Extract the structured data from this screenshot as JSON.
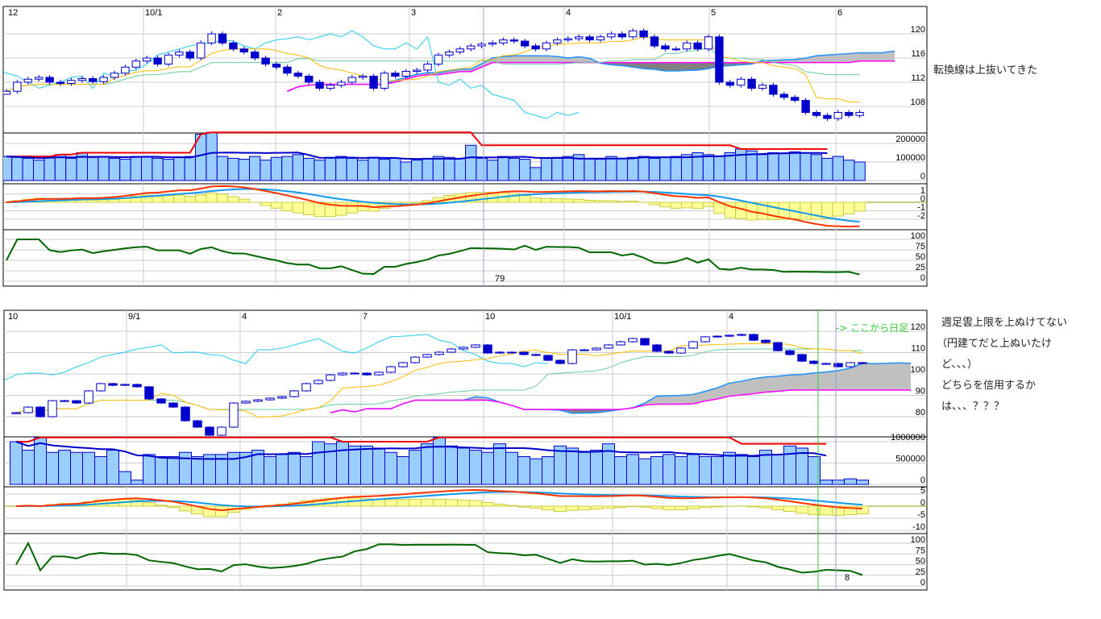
{
  "annotations": {
    "top_note": "転換線は上抜いてきた",
    "bottom_switch": "-> ここから日足",
    "bottom_note": [
      "週足雲上限を上ぬけてない",
      "（円建てだと上ぬいたけ",
      "ど、、、）",
      "どちらを信用するか",
      "は、、、？？？"
    ]
  },
  "colors": {
    "candle": "#0000cc",
    "tenkan": "#ffbb00",
    "kijun": "#66cc99",
    "chikou": "#22ccee",
    "span_a": "#1e90ff",
    "span_b": "#ff00ff",
    "cloud_light": "#c0c0c0",
    "cloud_dark": "#808080",
    "volume_fill": "#99ccff",
    "volume_ma_long": "#ee0000",
    "volume_ma_short": "#0000cc",
    "macd": "#ff3300",
    "signal": "#1199ee",
    "histogram": "#ffff99",
    "rsi": "#006600",
    "switch_line": "#33cc33",
    "cursor_line": "#9999dd"
  },
  "chart_data": [
    {
      "type": "candlestick",
      "title": "",
      "date_labels": [
        "12",
        "10/1",
        "2",
        "3",
        "4",
        "5",
        "6"
      ],
      "cursor_label": "79",
      "price_ticks": [
        120,
        116,
        112,
        108
      ],
      "volume_ticks": [
        200000,
        100000,
        0
      ],
      "macd_ticks": [
        1,
        0,
        -1,
        -2
      ],
      "rsi_ticks": [
        100,
        75,
        50,
        25,
        0
      ],
      "close": [
        110.5,
        112,
        112.5,
        112.8,
        112,
        111.8,
        112.3,
        112.6,
        112.1,
        112.8,
        113.5,
        114.5,
        115.5,
        116,
        115,
        116.5,
        117,
        116,
        118.5,
        120,
        118.5,
        117.5,
        117,
        116,
        115,
        114.5,
        113.5,
        113,
        112,
        111,
        111.5,
        112,
        112.8,
        113,
        111,
        113.5,
        113,
        113.8,
        114,
        115,
        116.5,
        117,
        117.5,
        118,
        118.3,
        118.5,
        119,
        118.8,
        118,
        117.5,
        118.5,
        119,
        119.2,
        119.5,
        119,
        119.5,
        120,
        119.5,
        120.5,
        119.5,
        118,
        117.5,
        117.5,
        118.5,
        117.5,
        119.5,
        112,
        111.5,
        112.5,
        111,
        111.5,
        110,
        109.5,
        109,
        107,
        106.5,
        106,
        107,
        106.5,
        107
      ],
      "volume": [
        130000,
        125000,
        120000,
        110000,
        130000,
        140000,
        120000,
        150000,
        125000,
        130000,
        120000,
        115000,
        130000,
        130000,
        120000,
        115000,
        125000,
        130000,
        250000,
        260000,
        130000,
        120000,
        115000,
        130000,
        110000,
        125000,
        130000,
        140000,
        120000,
        110000,
        125000,
        130000,
        120000,
        110000,
        125000,
        115000,
        120000,
        100000,
        110000,
        120000,
        130000,
        125000,
        120000,
        190000,
        120000,
        110000,
        130000,
        120000,
        115000,
        70000,
        120000,
        125000,
        130000,
        140000,
        120000,
        115000,
        130000,
        120000,
        125000,
        130000,
        120000,
        125000,
        130000,
        140000,
        150000,
        140000,
        130000,
        150000,
        170000,
        160000,
        140000,
        150000,
        145000,
        155000,
        150000,
        140000,
        120000,
        130000,
        110000,
        100000
      ]
    },
    {
      "type": "candlestick",
      "title": "",
      "date_labels": [
        "10",
        "9/1",
        "4",
        "7",
        "10",
        "10/1",
        "4"
      ],
      "cursor_label": "8",
      "price_ticks": [
        120,
        110,
        100,
        90,
        80
      ],
      "volume_ticks": [
        1000000,
        500000,
        0
      ],
      "macd_ticks": [
        5,
        0,
        -5,
        -10
      ],
      "rsi_ticks": [
        100,
        75,
        50,
        25,
        0
      ],
      "close": [
        81.9,
        84.5,
        80,
        87.5,
        87.5,
        86.4,
        92.1,
        95.5,
        94.7,
        95.1,
        94,
        88.3,
        86.4,
        84.5,
        78.1,
        75.1,
        71.3,
        75.1,
        86.4,
        87.2,
        87.9,
        88.7,
        89.4,
        92.1,
        95.5,
        97,
        99.6,
        100.4,
        100.4,
        99.6,
        100.8,
        103.4,
        105.3,
        107.9,
        109.1,
        110.2,
        111.7,
        112.5,
        113.6,
        109.8,
        110.2,
        110.2,
        109.1,
        108.7,
        106.4,
        104.9,
        111.3,
        111.3,
        112.1,
        113.6,
        115.1,
        116.6,
        113.6,
        110.6,
        109.8,
        112.1,
        115.1,
        117.4,
        117.7,
        118.1,
        118.5,
        115.8,
        114.7,
        110.9,
        109.1,
        106,
        104.9,
        104.9,
        103.4,
        105.3,
        104.9
      ],
      "volume": [
        1000000,
        800000,
        1100000,
        750000,
        800000,
        750000,
        750000,
        650000,
        800000,
        300000,
        100000,
        700000,
        650000,
        650000,
        750000,
        650000,
        700000,
        700000,
        750000,
        750000,
        800000,
        650000,
        700000,
        750000,
        650000,
        1000000,
        950000,
        1000000,
        900000,
        900000,
        850000,
        750000,
        650000,
        800000,
        950000,
        1100000,
        900000,
        850000,
        800000,
        750000,
        950000,
        750000,
        650000,
        600000,
        650000,
        900000,
        850000,
        750000,
        800000,
        950000,
        650000,
        700000,
        600000,
        650000,
        700000,
        650000,
        700000,
        650000,
        650000,
        750000,
        700000,
        650000,
        800000,
        700000,
        900000,
        850000,
        650000,
        100000,
        100000,
        130000,
        100000
      ]
    }
  ]
}
